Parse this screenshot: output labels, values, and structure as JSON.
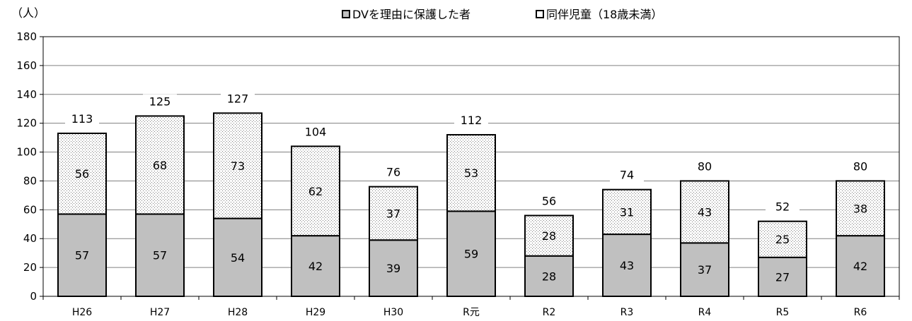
{
  "chart_data": {
    "type": "bar",
    "stacked": true,
    "unit": "（人）",
    "categories": [
      "H26",
      "H27",
      "H28",
      "H29",
      "H30",
      "R元",
      "R2",
      "R3",
      "R4",
      "R5",
      "R6"
    ],
    "series": [
      {
        "name": "DVを理由に保護した者",
        "values": [
          57,
          57,
          54,
          42,
          39,
          59,
          28,
          43,
          37,
          27,
          42
        ],
        "color": "#c0c0c0"
      },
      {
        "name": "同伴児童（18歳未満）",
        "values": [
          56,
          68,
          73,
          62,
          37,
          53,
          28,
          31,
          43,
          25,
          38
        ],
        "color": "#ffffff",
        "pattern": "dotted"
      }
    ],
    "totals": [
      113,
      125,
      127,
      104,
      76,
      112,
      56,
      74,
      80,
      52,
      80
    ],
    "ylim": [
      0,
      180
    ],
    "yticks": [
      0,
      20,
      40,
      60,
      80,
      100,
      120,
      140,
      160,
      180
    ],
    "grid": true,
    "legend_position": "top"
  }
}
